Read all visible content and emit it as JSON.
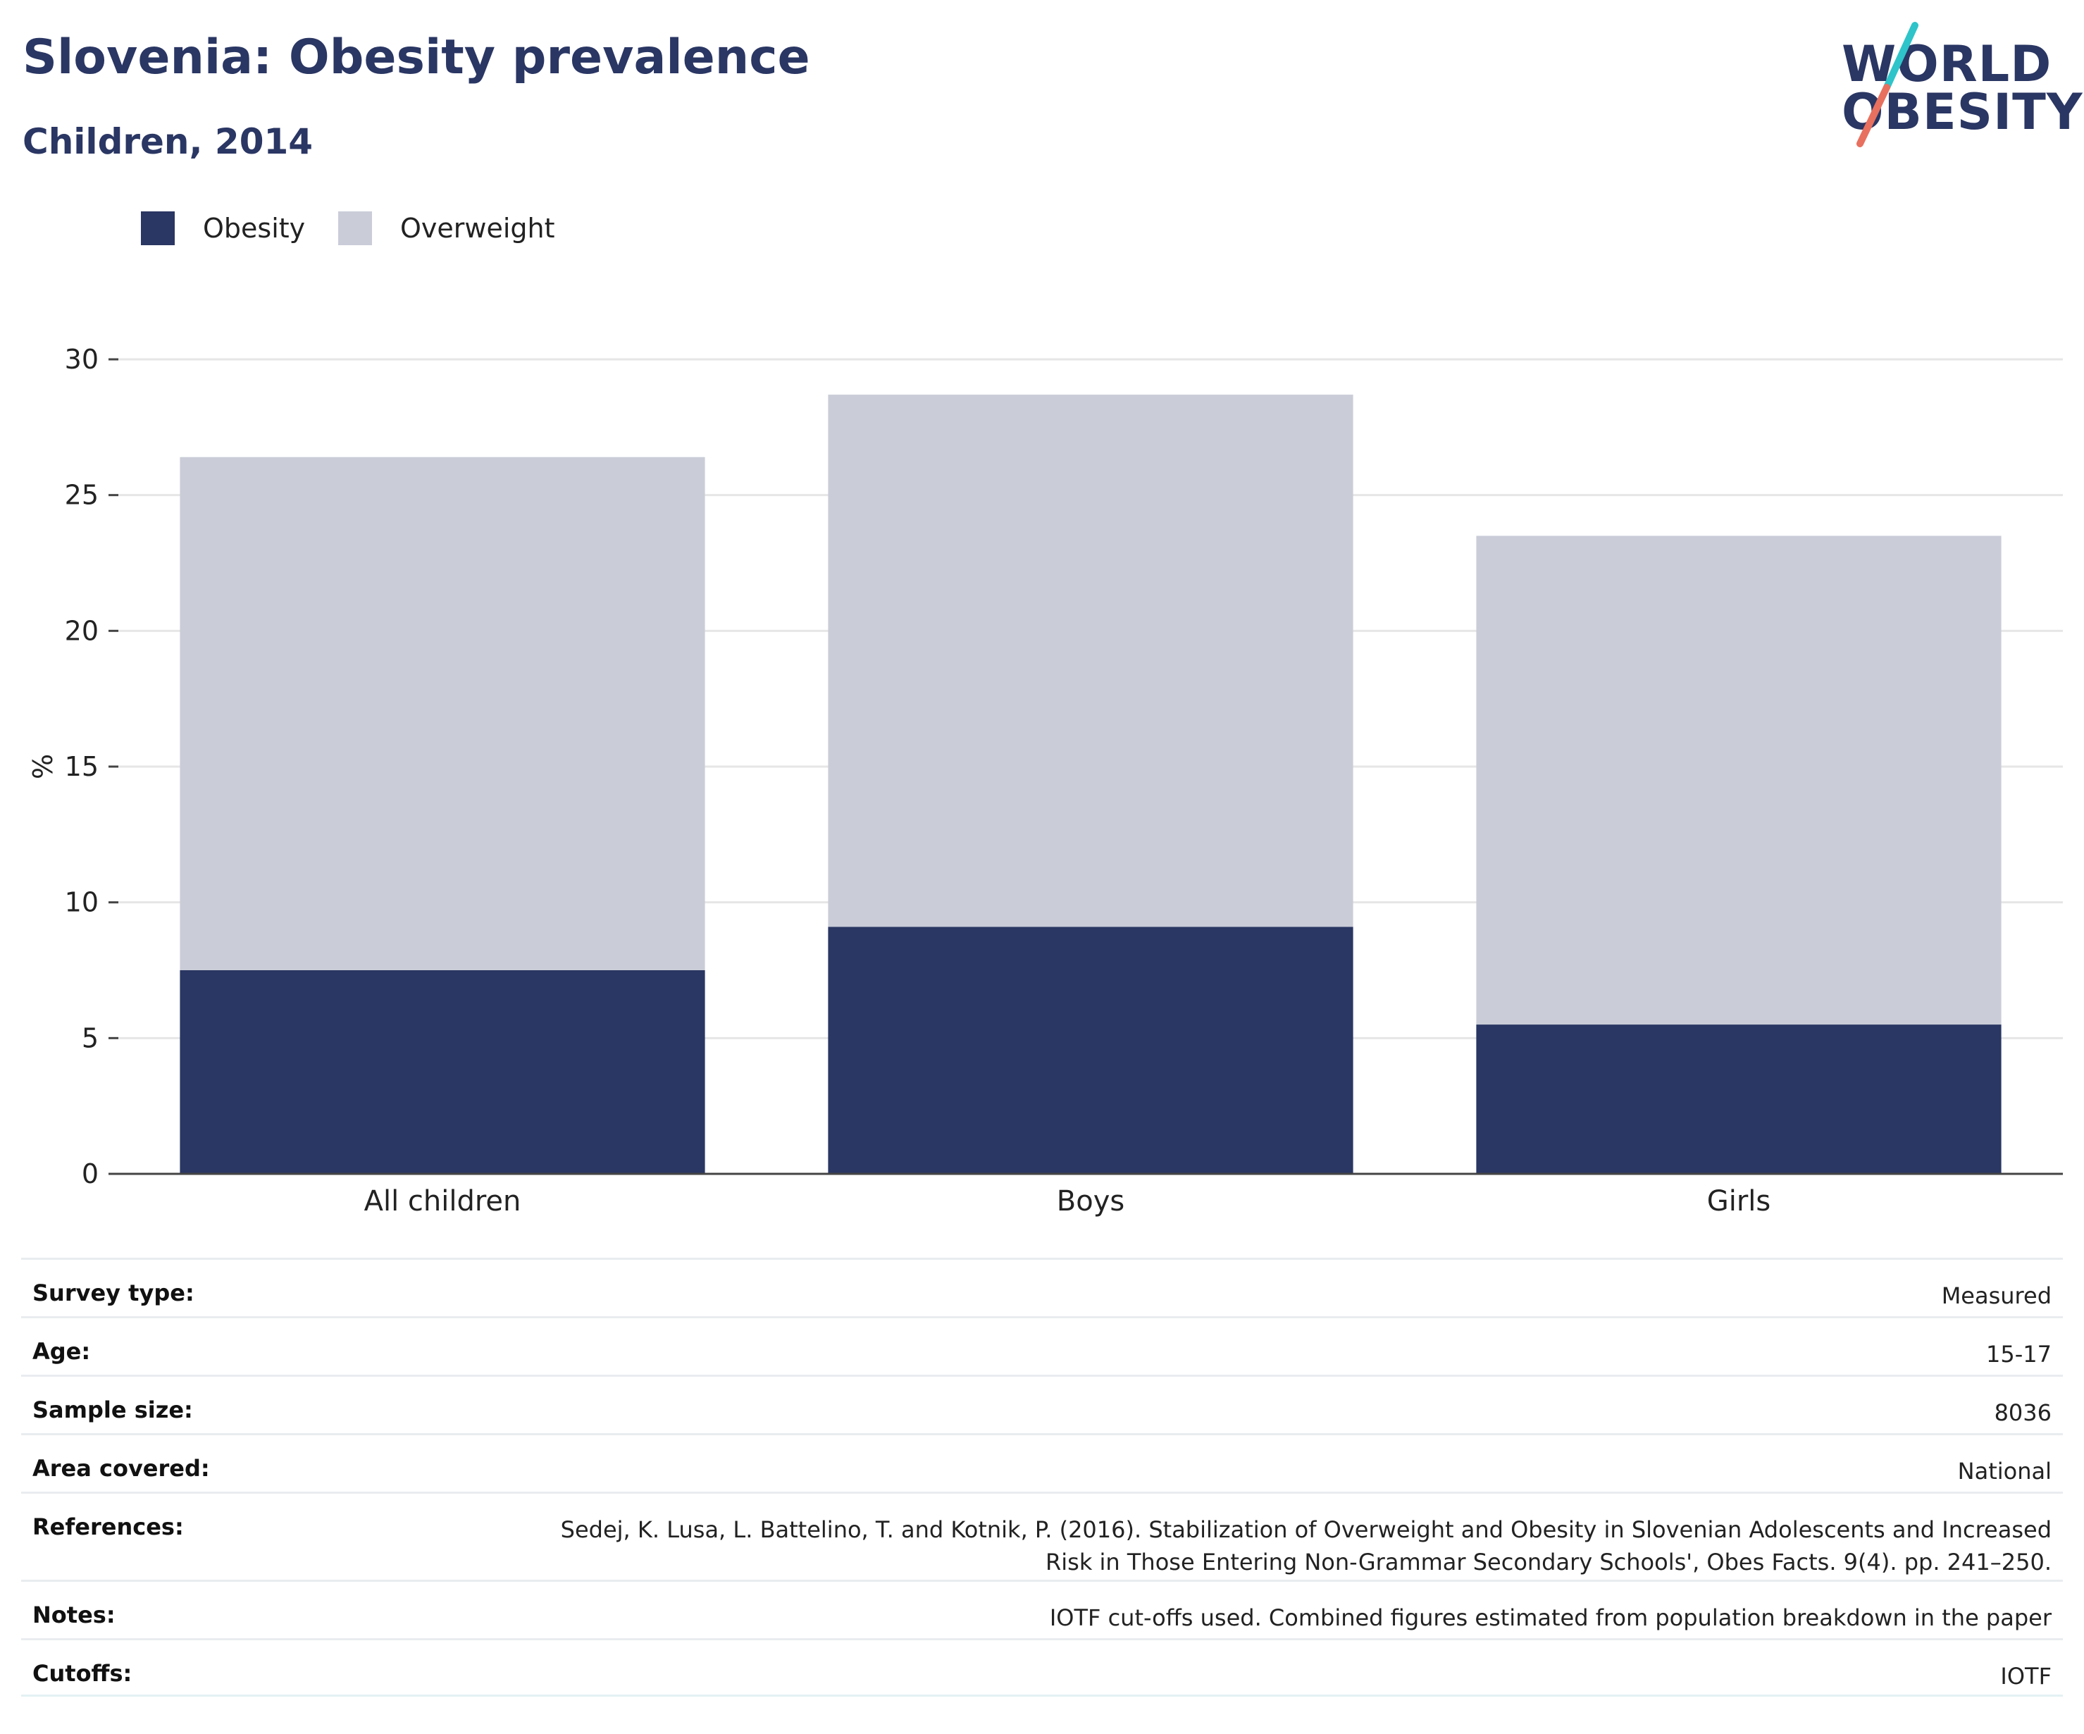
{
  "header": {
    "title": "Slovenia: Obesity prevalence",
    "subtitle": "Children, 2014",
    "logo": {
      "line1": "WORLD",
      "line2": "OBESITY"
    }
  },
  "colors": {
    "title": "#2a3663",
    "obesity": "#2a3663",
    "overweight": "#cacdd8",
    "logo_slash_teal": "#2ec4c9",
    "logo_slash_coral": "#e8705f",
    "gridline": "#e6e6e6",
    "axis": "#444444"
  },
  "legend": [
    {
      "label": "Obesity",
      "color": "#2a3663"
    },
    {
      "label": "Overweight",
      "color": "#cacdd8"
    }
  ],
  "chart_data": {
    "type": "bar",
    "stacked": true,
    "categories": [
      "All children",
      "Boys",
      "Girls"
    ],
    "series": [
      {
        "name": "Obesity",
        "values": [
          7.5,
          9.1,
          5.5
        ]
      },
      {
        "name": "Overweight",
        "values": [
          18.9,
          19.6,
          18.0
        ]
      }
    ],
    "totals": [
      26.4,
      28.7,
      23.5
    ],
    "ylabel": "%",
    "xlabel": "",
    "ylim": [
      0,
      30
    ],
    "yticks": [
      0,
      5,
      10,
      15,
      20,
      25,
      30
    ],
    "grid": true,
    "legend_position": "top-left"
  },
  "info": [
    {
      "key": "Survey type:",
      "value": "Measured"
    },
    {
      "key": "Age:",
      "value": "15-17"
    },
    {
      "key": "Sample size:",
      "value": "8036"
    },
    {
      "key": "Area covered:",
      "value": "National"
    },
    {
      "key": "References:",
      "value": "Sedej, K. Lusa, L. Battelino, T. and Kotnik, P. (2016). Stabilization of Overweight and Obesity in Slovenian Adolescents and Increased\nRisk in Those Entering Non-Grammar Secondary Schools', Obes Facts. 9(4). pp. 241–250."
    },
    {
      "key": "Notes:",
      "value": "IOTF cut-offs used. Combined figures estimated from population breakdown in the paper"
    },
    {
      "key": "Cutoffs:",
      "value": "IOTF"
    }
  ]
}
